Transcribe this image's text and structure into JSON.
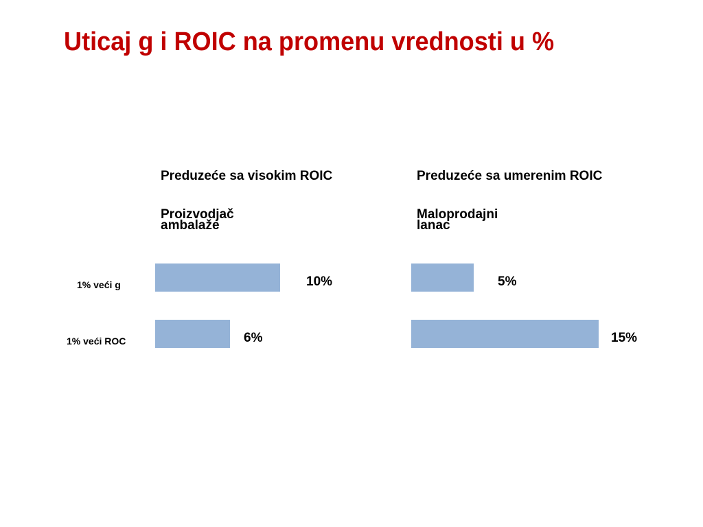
{
  "title": "Uticaj g i ROIC na promenu vrednosti u %",
  "chart_data": [
    {
      "type": "bar",
      "orientation": "horizontal",
      "title": "Preduzeće sa visokim ROIC",
      "subtitle": "Proizvodjač\nambalaže",
      "categories": [
        "1% veći g",
        "1% veći ROC"
      ],
      "values": [
        10,
        6
      ],
      "value_labels": [
        "10%",
        "6%"
      ],
      "color": "#95b3d7"
    },
    {
      "type": "bar",
      "orientation": "horizontal",
      "title": "Preduzeće sa umerenim ROIC",
      "subtitle": "Maloprodajni\nlanac",
      "categories": [
        "1% veći g",
        "1% veći ROC"
      ],
      "values": [
        5,
        15
      ],
      "value_labels": [
        "5%",
        "15%"
      ],
      "color": "#95b3d7"
    }
  ]
}
